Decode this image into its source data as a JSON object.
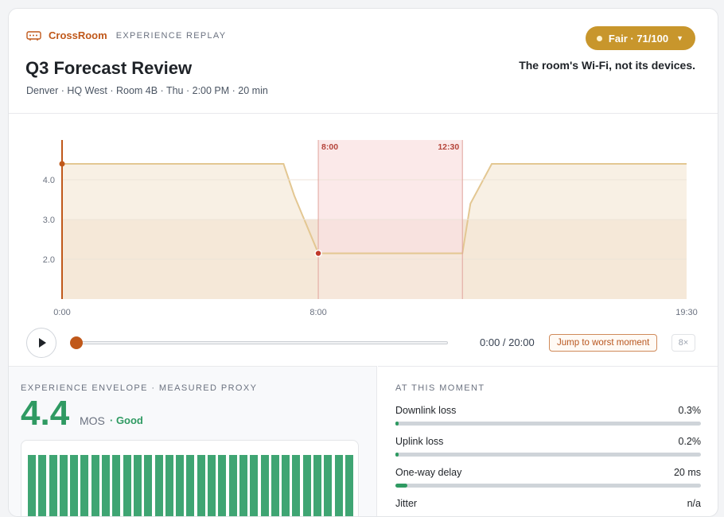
{
  "brand": {
    "name": "CrossRoom",
    "subtitle": "EXPERIENCE REPLAY",
    "icon": "router-icon"
  },
  "meeting": {
    "title": "Q3 Forecast Review",
    "meta": "Denver · HQ West · Room 4B · Thu · 2:00 PM · 20 min"
  },
  "verdict": {
    "label": "Fair · 71/100",
    "color": "#c8962c"
  },
  "tagline": "The room's Wi-Fi, not its devices.",
  "chart_data": {
    "type": "area",
    "x": [
      "0:00",
      "6:55",
      "7:15",
      "8:00",
      "8:30",
      "12:30",
      "12:45",
      "13:25",
      "19:30"
    ],
    "series": [
      {
        "values": [
          4.4,
          4.4,
          3.6,
          2.15,
          2.15,
          2.15,
          3.4,
          4.4,
          4.4
        ]
      }
    ],
    "ylim": [
      1.0,
      5.0
    ],
    "yticks": [
      "4.0",
      "3.0",
      "2.0"
    ],
    "xticks": [
      "0:00",
      "8:00",
      "19:30"
    ],
    "highlight": {
      "start": "8:00",
      "end": "12:30",
      "start_label": "8:00",
      "end_label": "12:30"
    },
    "markers": [
      {
        "x": "0:00",
        "y": 4.4
      },
      {
        "x": "8:00",
        "y": 2.15
      }
    ],
    "colors": {
      "line": "#e3c792",
      "fill": "#f5ead8",
      "band": "#f0ddcc",
      "highlight": "#f9e2e2",
      "accent": "#c0581a",
      "alert": "#c0392b"
    }
  },
  "player": {
    "time": "0:00 / 20:00",
    "jump_label": "Jump to worst moment",
    "speed": "8×",
    "progress": 0.0
  },
  "envelope": {
    "heading": "EXPERIENCE ENVELOPE · MEASURED PROXY",
    "value": "4.4",
    "unit": "MOS",
    "rating": "· Good"
  },
  "moment": {
    "heading": "AT THIS MOMENT",
    "metrics": [
      {
        "label": "Downlink loss",
        "value": "0.3%",
        "level": 0.01
      },
      {
        "label": "Uplink loss",
        "value": "0.2%",
        "level": 0.005
      },
      {
        "label": "One-way delay",
        "value": "20 ms",
        "level": 0.04
      },
      {
        "label": "Jitter",
        "value": "n/a",
        "level": 0
      }
    ]
  }
}
